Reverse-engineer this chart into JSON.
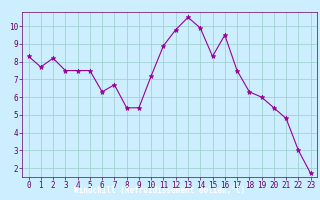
{
  "x": [
    0,
    1,
    2,
    3,
    4,
    5,
    6,
    7,
    8,
    9,
    10,
    11,
    12,
    13,
    14,
    15,
    16,
    17,
    18,
    19,
    20,
    21,
    22,
    23
  ],
  "y": [
    8.3,
    7.7,
    8.2,
    7.5,
    7.5,
    7.5,
    6.3,
    6.7,
    5.4,
    5.4,
    7.2,
    8.9,
    9.8,
    10.5,
    9.9,
    8.3,
    9.5,
    7.5,
    6.3,
    6.0,
    5.4,
    4.8,
    3.0,
    1.7
  ],
  "xlabel": "Windchill (Refroidissement éolien,°C)",
  "line_color": "#990099",
  "marker": "*",
  "bg_color": "#cceeff",
  "grid_color": "#99cccc",
  "xlim": [
    -0.5,
    23.5
  ],
  "ylim": [
    1.5,
    10.8
  ],
  "yticks": [
    2,
    3,
    4,
    5,
    6,
    7,
    8,
    9,
    10
  ],
  "xticks": [
    0,
    1,
    2,
    3,
    4,
    5,
    6,
    7,
    8,
    9,
    10,
    11,
    12,
    13,
    14,
    15,
    16,
    17,
    18,
    19,
    20,
    21,
    22,
    23
  ],
  "tick_color": "#660066",
  "banner_color": "#660066",
  "banner_text_color": "#ffffff",
  "tick_fontsize": 5.5,
  "xlabel_fontsize": 5.5
}
